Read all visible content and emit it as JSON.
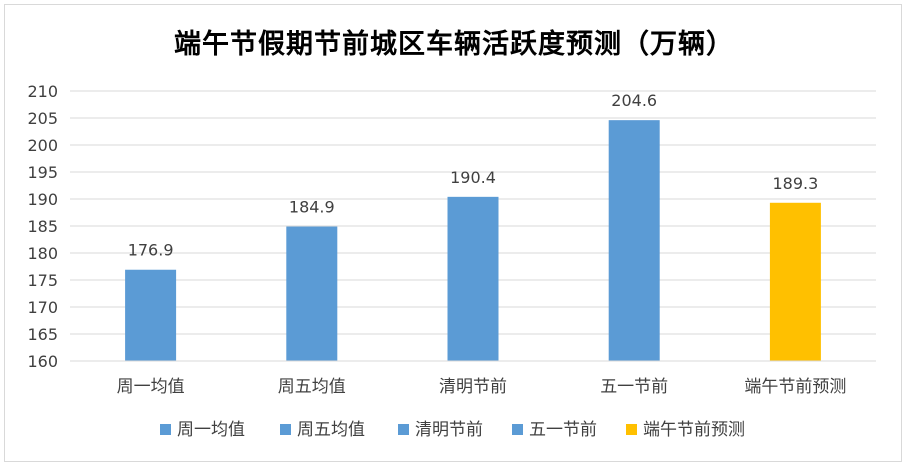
{
  "chart_data": {
    "type": "bar",
    "title": "端午节假期节前城区车辆活跃度预测（万辆）",
    "categories": [
      "周一均值",
      "周五均值",
      "清明节前",
      "五一节前",
      "端午节前预测"
    ],
    "values": [
      176.9,
      184.9,
      190.4,
      204.6,
      189.3
    ],
    "colors": [
      "#5b9bd5",
      "#5b9bd5",
      "#5b9bd5",
      "#5b9bd5",
      "#ffc000"
    ],
    "data_labels": [
      "176.9",
      "184.9",
      "190.4",
      "204.6",
      "189.3"
    ],
    "ylim": [
      160,
      210
    ],
    "yticks": [
      160,
      165,
      170,
      175,
      180,
      185,
      190,
      195,
      200,
      205,
      210
    ],
    "grid": true,
    "legend": {
      "placement": "bottom",
      "entries": [
        "周一均值",
        "周五均值",
        "清明节前",
        "五一节前",
        "端午节前预测"
      ]
    },
    "xlabel": "",
    "ylabel": ""
  }
}
